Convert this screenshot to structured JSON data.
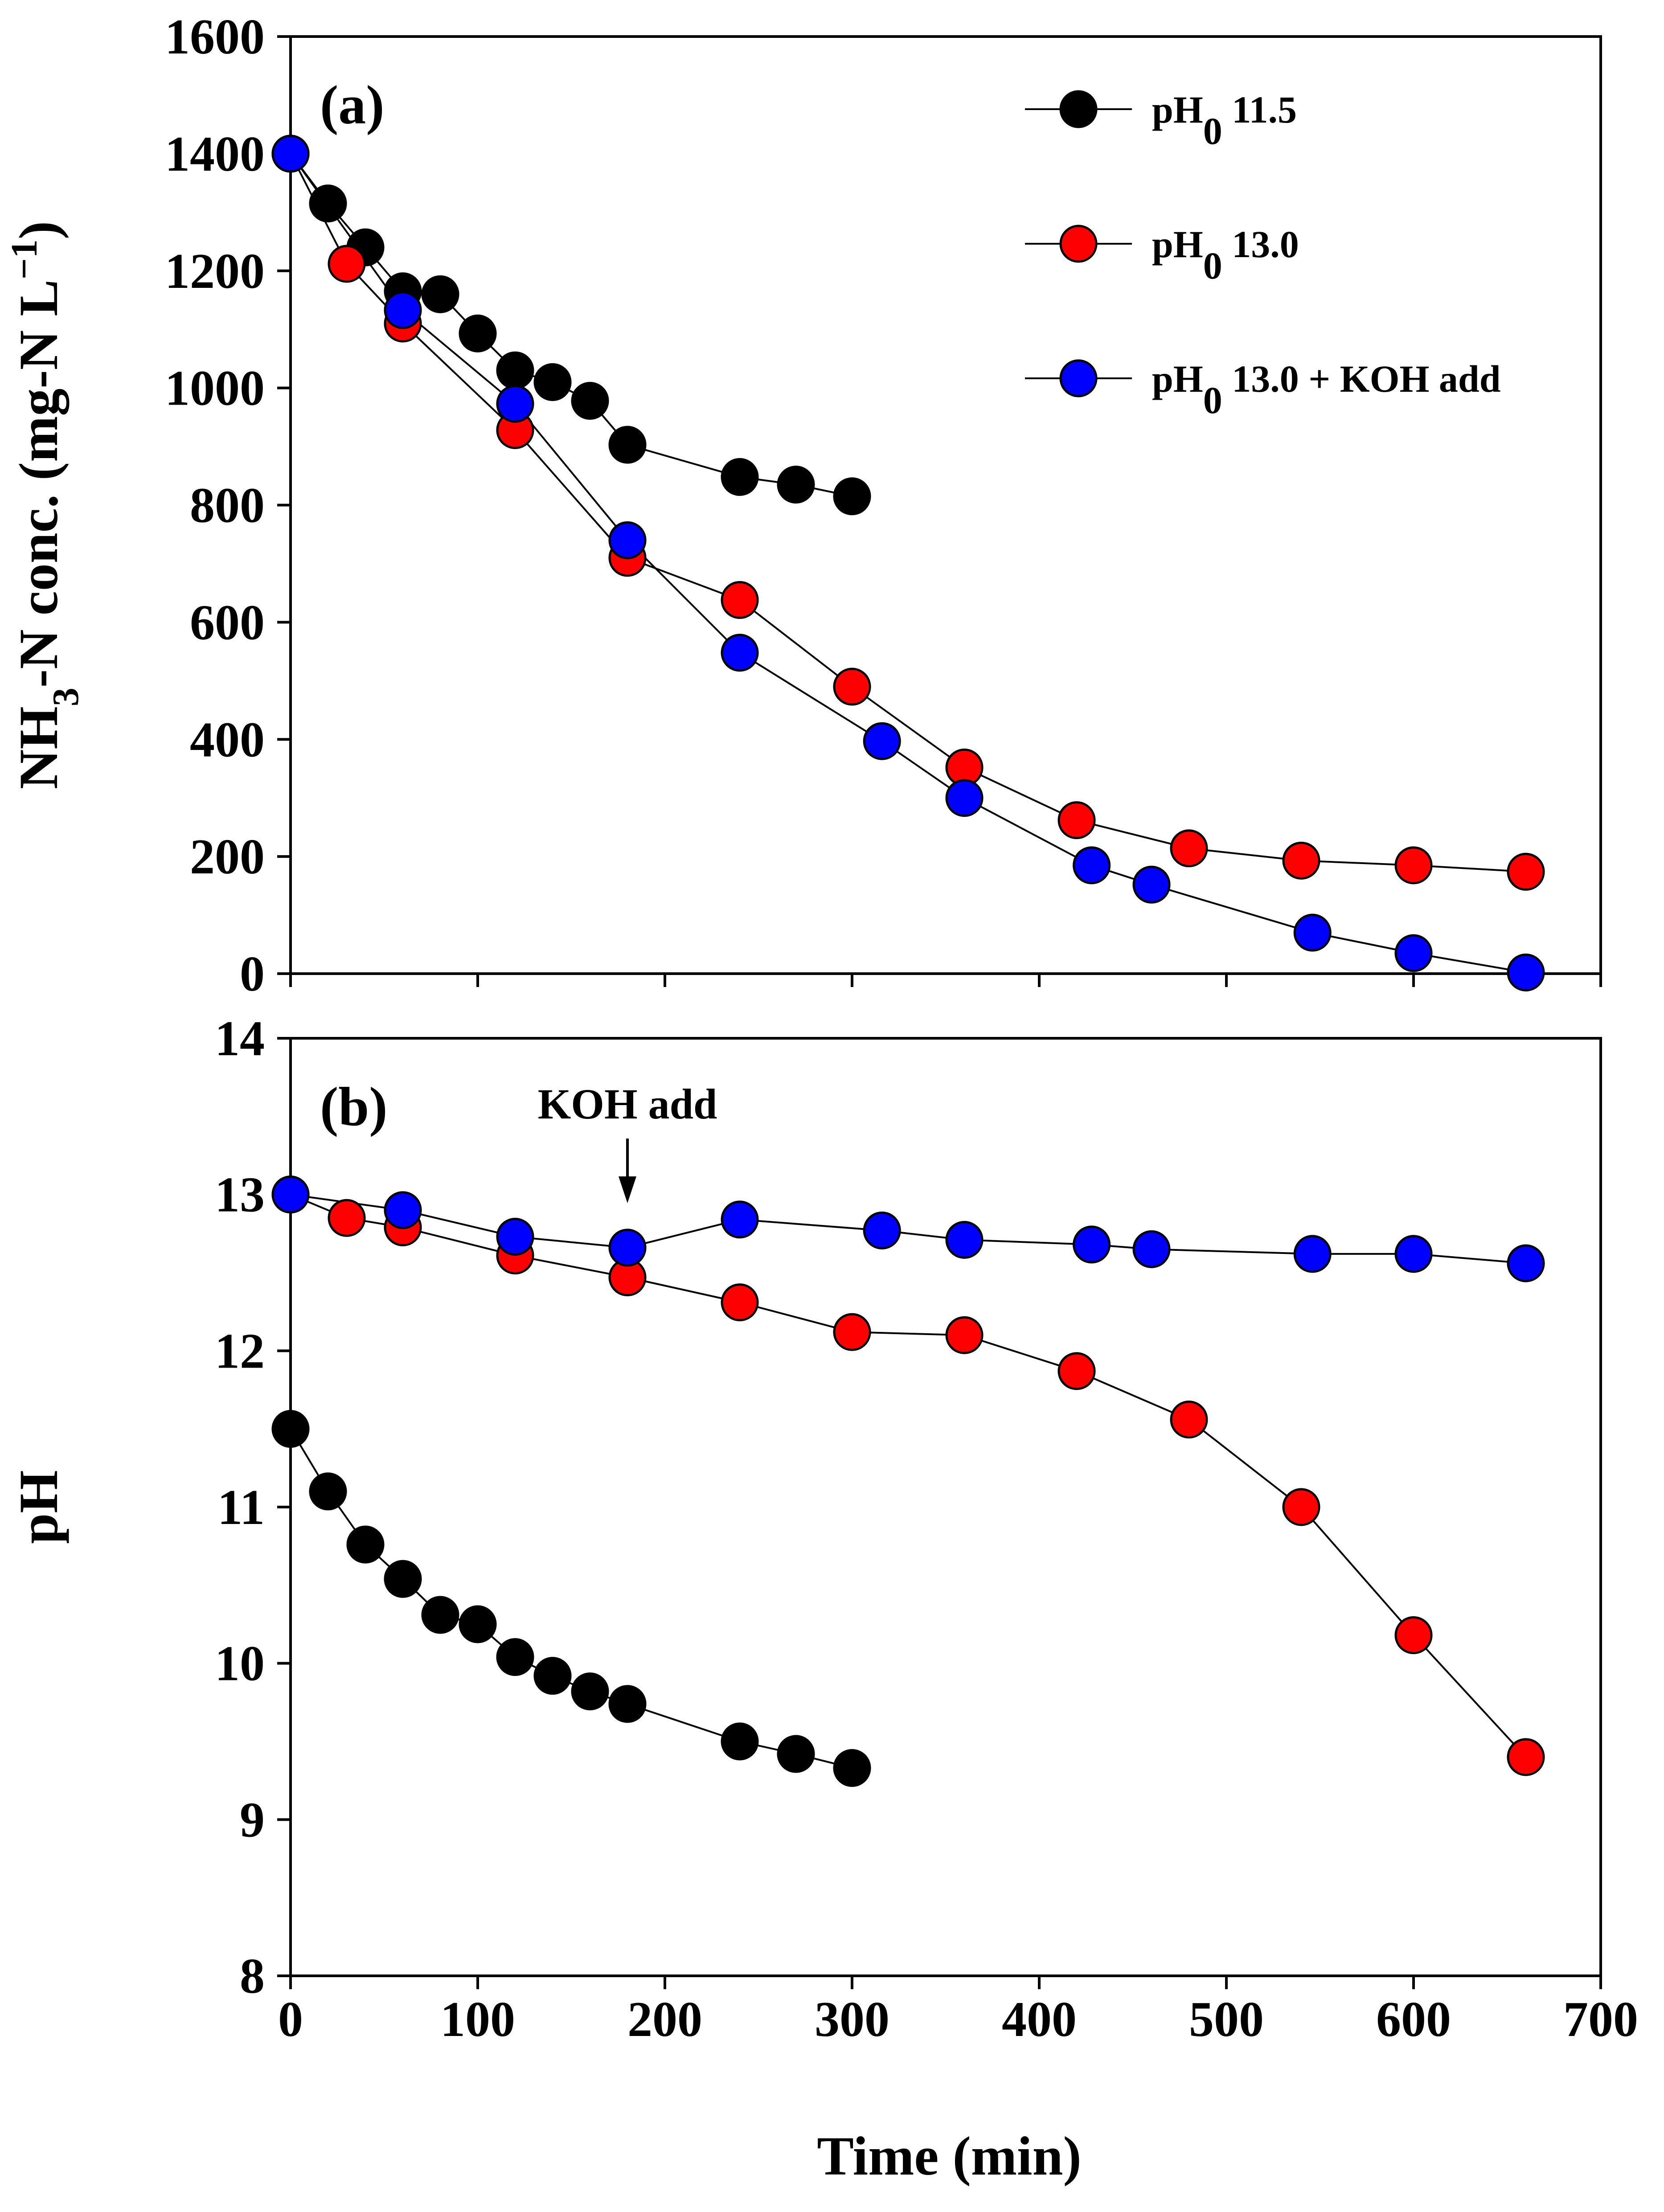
{
  "chart_data": [
    {
      "type": "line",
      "panel_label": "(a)",
      "ylabel": "NH3-N conc. (mg-N L−1)",
      "ylabel_parts": {
        "main": "NH",
        "sub": "3",
        "rest": "-N conc. (mg-N L",
        "sup": "−1",
        "end": ")"
      },
      "xlabel": "Time (min)",
      "xlim": [
        0,
        700
      ],
      "ylim": [
        0,
        1600
      ],
      "xticks": [
        0,
        100,
        200,
        300,
        400,
        500,
        600,
        700
      ],
      "xtick_labels": [
        "0",
        "100",
        "200",
        "300",
        "400",
        "500",
        "600",
        "700"
      ],
      "yticks": [
        0,
        200,
        400,
        600,
        800,
        1000,
        1200,
        1400,
        1600
      ],
      "ytick_labels": [
        "0",
        "200",
        "400",
        "600",
        "800",
        "1000",
        "1200",
        "1400",
        "1600"
      ],
      "legend": {
        "position": "top-right",
        "entries": [
          {
            "prefix": "pH",
            "sub": "0",
            "suffix": " 11.5",
            "color": "#000000"
          },
          {
            "prefix": "pH",
            "sub": "0",
            "suffix": " 13.0",
            "color": "#ff0000"
          },
          {
            "prefix": "pH",
            "sub": "0",
            "suffix": " 13.0 + KOH add",
            "color": "#0000ff"
          }
        ]
      },
      "series": [
        {
          "name": "pH0 11.5",
          "color": "#000000",
          "x": [
            0,
            20,
            40,
            60,
            80,
            100,
            120,
            140,
            160,
            180,
            240,
            270,
            300
          ],
          "y": [
            1400,
            1315,
            1240,
            1165,
            1160,
            1093,
            1030,
            1010,
            978,
            903,
            848,
            835,
            815
          ]
        },
        {
          "name": "pH0 13.0",
          "color": "#ff0000",
          "x": [
            0,
            30,
            60,
            120,
            180,
            240,
            300,
            360,
            420,
            480,
            540,
            600,
            660
          ],
          "y": [
            1400,
            1212,
            1110,
            928,
            710,
            638,
            490,
            352,
            262,
            214,
            193,
            185,
            174
          ]
        },
        {
          "name": "pH0 13.0 + KOH add",
          "color": "#0000ff",
          "x": [
            0,
            60,
            120,
            180,
            240,
            316,
            360,
            428,
            460,
            546,
            600,
            660
          ],
          "y": [
            1400,
            1133,
            973,
            740,
            548,
            397,
            300,
            185,
            152,
            70,
            35,
            2
          ]
        }
      ]
    },
    {
      "type": "line",
      "panel_label": "(b)",
      "ylabel": "pH",
      "xlabel": "Time (min)",
      "xlim": [
        0,
        700
      ],
      "ylim": [
        8,
        14
      ],
      "xticks": [
        0,
        100,
        200,
        300,
        400,
        500,
        600,
        700
      ],
      "xtick_labels": [
        "0",
        "100",
        "200",
        "300",
        "400",
        "500",
        "600",
        "700"
      ],
      "yticks": [
        8,
        9,
        10,
        11,
        12,
        13,
        14
      ],
      "ytick_labels": [
        "8",
        "9",
        "10",
        "11",
        "12",
        "13",
        "14"
      ],
      "annotation": {
        "text": "KOH add",
        "x": 180
      },
      "series": [
        {
          "name": "pH0 11.5",
          "color": "#000000",
          "x": [
            0,
            20,
            40,
            60,
            80,
            100,
            120,
            140,
            160,
            180,
            240,
            270,
            300
          ],
          "y": [
            11.5,
            11.1,
            10.76,
            10.54,
            10.31,
            10.25,
            10.04,
            9.92,
            9.82,
            9.74,
            9.5,
            9.42,
            9.33
          ]
        },
        {
          "name": "pH0 13.0",
          "color": "#ff0000",
          "x": [
            0,
            30,
            60,
            120,
            180,
            240,
            300,
            360,
            420,
            480,
            540,
            600,
            660
          ],
          "y": [
            13.0,
            12.85,
            12.79,
            12.61,
            12.47,
            12.31,
            12.12,
            12.1,
            11.87,
            11.56,
            11.0,
            10.18,
            9.4
          ]
        },
        {
          "name": "pH0 13.0 + KOH add",
          "color": "#0000ff",
          "x": [
            0,
            60,
            120,
            180,
            240,
            316,
            360,
            428,
            460,
            546,
            600,
            660
          ],
          "y": [
            13.0,
            12.9,
            12.73,
            12.66,
            12.84,
            12.77,
            12.71,
            12.68,
            12.65,
            12.62,
            12.62,
            12.56
          ]
        }
      ]
    }
  ]
}
